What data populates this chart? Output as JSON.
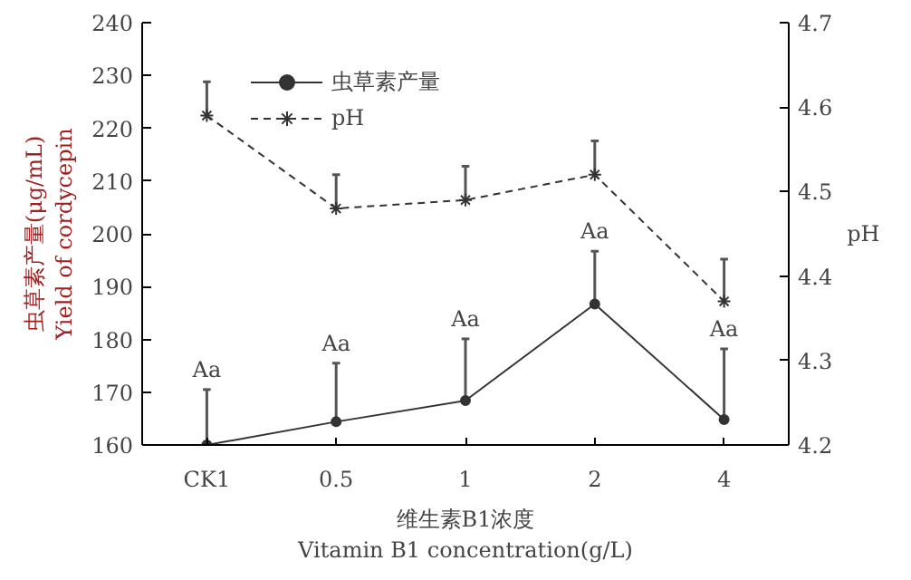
{
  "chart_data": {
    "type": "line",
    "xlabel": "维生素B1浓度\nVitamin B1 concentration(g/L)",
    "ylabel": "虫草素产量(μg/mL)\nYield of cordycepin",
    "y2label": "pH",
    "categories": [
      "CK1",
      "0.5",
      "1",
      "2",
      "4"
    ],
    "series": [
      {
        "name": "虫草素产量",
        "color": "#333333",
        "marker": "circle",
        "line_style": "solid",
        "values": [
          160.0,
          164.4,
          168.4,
          186.7,
          164.8
        ],
        "errors": [
          [
            160.0,
            170.5
          ],
          [
            164.4,
            175.5
          ],
          [
            168.4,
            180.1
          ],
          [
            186.7,
            196.7
          ],
          [
            164.8,
            178.2
          ]
        ]
      },
      {
        "name": "pH",
        "color": "#333333",
        "marker": "cross",
        "line_style": "dashed",
        "axis": "y2",
        "values": [
          4.59,
          4.48,
          4.49,
          4.52,
          4.37
        ],
        "errors": [
          [
            4.59,
            4.63
          ],
          [
            4.48,
            4.52
          ],
          [
            4.49,
            4.53
          ],
          [
            4.52,
            4.56
          ],
          [
            4.37,
            4.42
          ]
        ]
      }
    ],
    "ylim": [
      160,
      240
    ],
    "yticks": [
      160,
      170,
      180,
      190,
      200,
      210,
      220,
      230,
      240
    ],
    "y2lim": [
      4.2,
      4.7
    ],
    "y2ticks": [
      4.2,
      4.3,
      4.4,
      4.5,
      4.6,
      4.7
    ],
    "annotations": [
      {
        "text": "Aa",
        "x": "CK1",
        "y": 170.5
      },
      {
        "text": "Aa",
        "x": "0.5",
        "y": 175.5
      },
      {
        "text": "Aa",
        "x": "1",
        "y": 180.1
      },
      {
        "text": "Aa",
        "x": "2",
        "y": 196.7
      },
      {
        "text": "Aa",
        "x": "4",
        "y": 178.2
      }
    ],
    "legend": "top",
    "grid": false
  }
}
